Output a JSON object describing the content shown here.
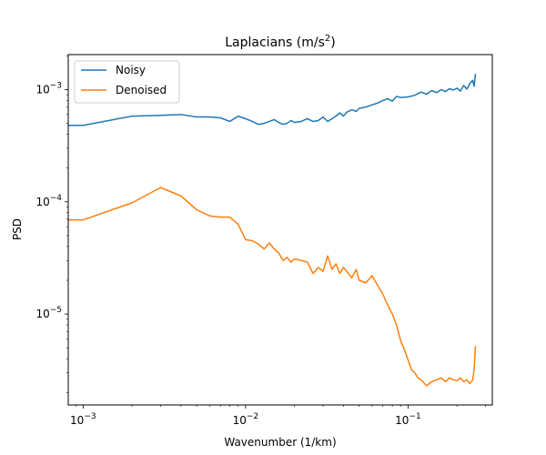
{
  "chart_data": {
    "type": "line",
    "title_main": "Laplacians (m/s",
    "title_sup": "2",
    "title_end": ")",
    "xlabel": "Wavenumber (1/km)",
    "ylabel": "PSD",
    "xscale": "log",
    "yscale": "log",
    "xlim": [
      0.00081,
      0.33
    ],
    "ylim": [
      1.55e-06,
      0.00205
    ],
    "grid": false,
    "legend_placement": "top-left",
    "xticks": [
      {
        "value": 0.001,
        "base": "10",
        "exp": "−3"
      },
      {
        "value": 0.01,
        "base": "10",
        "exp": "−2"
      },
      {
        "value": 0.1,
        "base": "10",
        "exp": "−1"
      }
    ],
    "yticks": [
      {
        "value": 1e-05,
        "base": "10",
        "exp": "−5"
      },
      {
        "value": 0.0001,
        "base": "10",
        "exp": "−4"
      },
      {
        "value": 0.001,
        "base": "10",
        "exp": "−3"
      }
    ],
    "series": [
      {
        "name": "Noisy",
        "color": "#1f77b4",
        "x": [
          0.00078,
          0.001,
          0.002,
          0.003,
          0.004,
          0.005,
          0.006,
          0.007,
          0.008,
          0.009,
          0.01,
          0.011,
          0.012,
          0.013,
          0.014,
          0.015,
          0.016,
          0.017,
          0.018,
          0.019,
          0.02,
          0.022,
          0.024,
          0.026,
          0.028,
          0.03,
          0.032,
          0.034,
          0.036,
          0.038,
          0.04,
          0.042,
          0.045,
          0.048,
          0.05,
          0.055,
          0.06,
          0.065,
          0.07,
          0.075,
          0.08,
          0.085,
          0.09,
          0.1,
          0.11,
          0.12,
          0.13,
          0.14,
          0.15,
          0.16,
          0.17,
          0.18,
          0.19,
          0.2,
          0.21,
          0.22,
          0.23,
          0.24,
          0.25,
          0.255,
          0.26
        ],
        "y": [
          0.00048,
          0.00048,
          0.00058,
          0.00059,
          0.0006,
          0.00057,
          0.00057,
          0.00056,
          0.00052,
          0.00058,
          0.00055,
          0.00052,
          0.00049,
          0.0005,
          0.00052,
          0.00054,
          0.00051,
          0.00049,
          0.0005,
          0.00053,
          0.00051,
          0.00052,
          0.00055,
          0.00052,
          0.00053,
          0.00057,
          0.00052,
          0.00055,
          0.00058,
          0.00062,
          0.00058,
          0.00063,
          0.00066,
          0.00064,
          0.00068,
          0.0007,
          0.00073,
          0.00076,
          0.0008,
          0.00083,
          0.00079,
          0.00087,
          0.00085,
          0.00086,
          0.00089,
          0.00095,
          0.00091,
          0.00098,
          0.00094,
          0.001,
          0.00096,
          0.00102,
          0.00099,
          0.00103,
          0.00097,
          0.00109,
          0.00101,
          0.00113,
          0.00121,
          0.00107,
          0.00138
        ]
      },
      {
        "name": "Denoised",
        "color": "#ff7f0e",
        "x": [
          0.00078,
          0.001,
          0.002,
          0.003,
          0.004,
          0.005,
          0.006,
          0.007,
          0.008,
          0.009,
          0.01,
          0.011,
          0.012,
          0.013,
          0.014,
          0.015,
          0.016,
          0.017,
          0.018,
          0.019,
          0.02,
          0.022,
          0.024,
          0.026,
          0.028,
          0.03,
          0.032,
          0.034,
          0.036,
          0.038,
          0.04,
          0.042,
          0.045,
          0.048,
          0.05,
          0.055,
          0.06,
          0.065,
          0.07,
          0.075,
          0.08,
          0.085,
          0.09,
          0.095,
          0.1,
          0.105,
          0.11,
          0.115,
          0.12,
          0.13,
          0.14,
          0.15,
          0.16,
          0.17,
          0.18,
          0.19,
          0.2,
          0.21,
          0.22,
          0.23,
          0.24,
          0.25,
          0.255,
          0.26
        ],
        "y": [
          6.9e-05,
          6.9e-05,
          9.8e-05,
          0.000134,
          0.000113,
          8.5e-05,
          7.5e-05,
          7.3e-05,
          7.3e-05,
          6.3e-05,
          4.6e-05,
          4.5e-05,
          4.2e-05,
          3.8e-05,
          4.3e-05,
          3.8e-05,
          3.5e-05,
          3e-05,
          3.2e-05,
          2.9e-05,
          3.1e-05,
          3e-05,
          2.9e-05,
          2.3e-05,
          2.6e-05,
          2.4e-05,
          3.3e-05,
          2.5e-05,
          2.8e-05,
          2.3e-05,
          2.6e-05,
          2.4e-05,
          2.1e-05,
          2.5e-05,
          2e-05,
          1.9e-05,
          2.2e-05,
          1.8e-05,
          1.5e-05,
          1.2e-05,
          1e-05,
          8e-06,
          5.8e-06,
          4.8e-06,
          3.9e-06,
          3.2e-06,
          3e-06,
          2.7e-06,
          2.6e-06,
          2.3e-06,
          2.5e-06,
          2.6e-06,
          2.7e-06,
          2.5e-06,
          2.7e-06,
          2.6e-06,
          2.55e-06,
          2.7e-06,
          2.5e-06,
          2.6e-06,
          2.4e-06,
          2.6e-06,
          3.2e-06,
          5.2e-06
        ]
      }
    ]
  }
}
